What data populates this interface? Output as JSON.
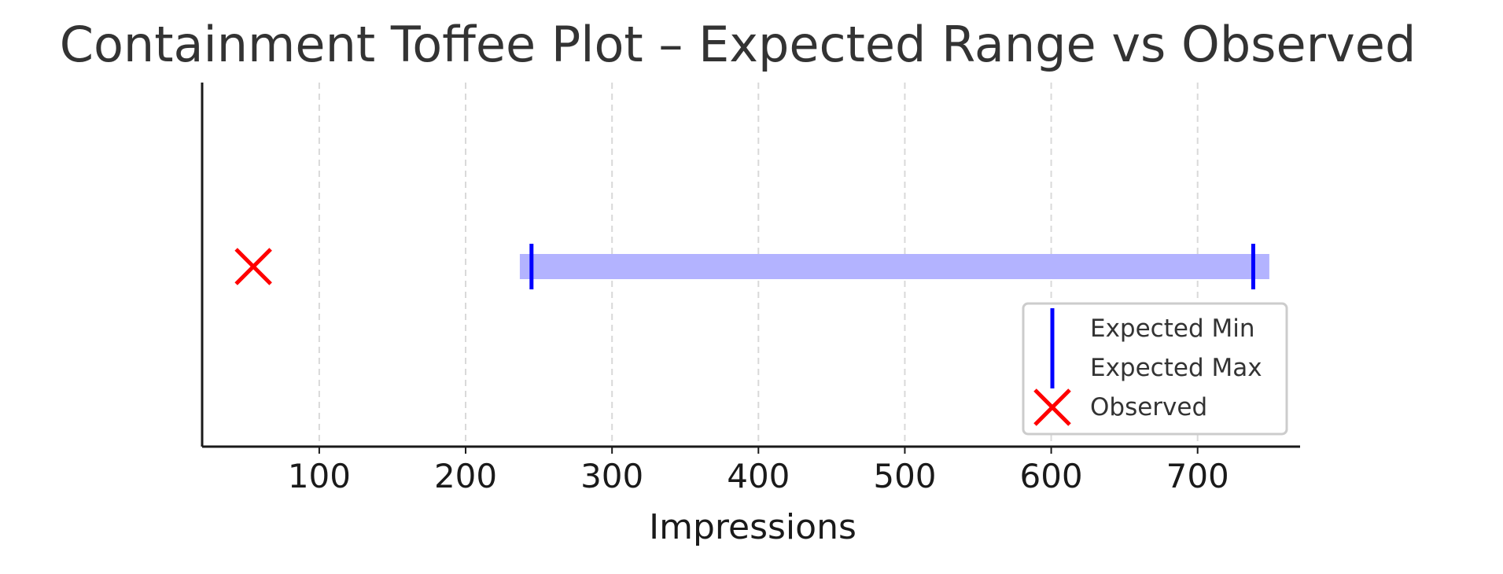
{
  "chart_data": {
    "type": "range-dot",
    "title": "Containment Toffee Plot – Expected Range vs Observed",
    "xlabel": "Impressions",
    "ylabel": "",
    "xlim": [
      20,
      770
    ],
    "xticks": [
      100,
      200,
      300,
      400,
      500,
      600,
      700
    ],
    "xtick_labels": [
      "100",
      "200",
      "300",
      "400",
      "500",
      "600",
      "700"
    ],
    "grid": "vertical-dashed",
    "expected_range": {
      "band": [
        237,
        749
      ],
      "min": 245,
      "max": 738
    },
    "observed": 55,
    "legend": {
      "placement": "lower-right",
      "entries": [
        {
          "label": "Expected Min",
          "marker": "vline"
        },
        {
          "label": "Expected Max",
          "marker": "vline"
        },
        {
          "label": "Observed",
          "marker": "x"
        }
      ]
    },
    "colors": {
      "band": "#b3b3ff",
      "range_marker": "#0000ff",
      "observed": "#ff0000",
      "grid": "#d9d9d9",
      "axis": "#1a1a1a",
      "text": "#333333"
    }
  }
}
